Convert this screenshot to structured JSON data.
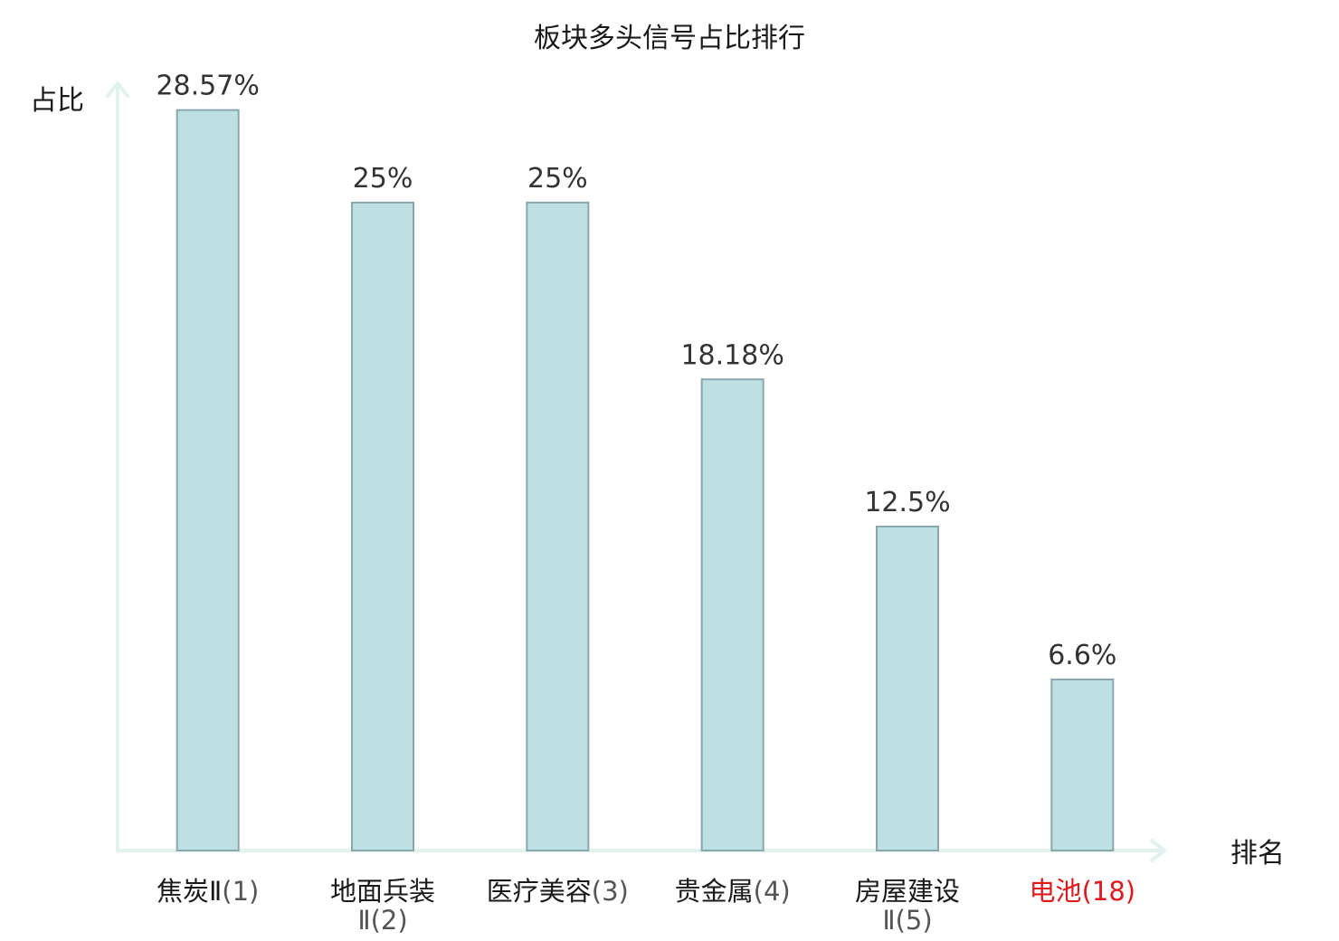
{
  "chart_data": {
    "type": "bar",
    "title": "板块多头信号占比排行",
    "ylabel": "占比",
    "xlabel": "排名",
    "ylim": [
      0,
      29.5
    ],
    "grid": false,
    "colors": {
      "bar_fill": "#bde0e3",
      "bar_stroke": "#8aa8ac",
      "axis": "#e1f2ef",
      "highlight": "#e0191e"
    },
    "categories": [
      {
        "lines": [
          {
            "name": "焦炭Ⅱ",
            "rank": "(1)"
          }
        ],
        "highlight": false
      },
      {
        "lines": [
          {
            "name": "地面兵装",
            "rank": ""
          },
          {
            "name": "",
            "rank": "Ⅱ(2)"
          }
        ],
        "highlight": false
      },
      {
        "lines": [
          {
            "name": "医疗美容",
            "rank": "(3)"
          }
        ],
        "highlight": false
      },
      {
        "lines": [
          {
            "name": "贵金属",
            "rank": "(4)"
          }
        ],
        "highlight": false
      },
      {
        "lines": [
          {
            "name": "房屋建设",
            "rank": ""
          },
          {
            "name": "",
            "rank": "Ⅱ(5)"
          }
        ],
        "highlight": false
      },
      {
        "lines": [
          {
            "name": "电池",
            "rank": "(18)"
          }
        ],
        "highlight": true
      }
    ],
    "values": [
      28.57,
      25,
      25,
      18.18,
      12.5,
      6.6
    ],
    "value_labels": [
      "28.57%",
      "25%",
      "25%",
      "18.18%",
      "12.5%",
      "6.6%"
    ]
  }
}
